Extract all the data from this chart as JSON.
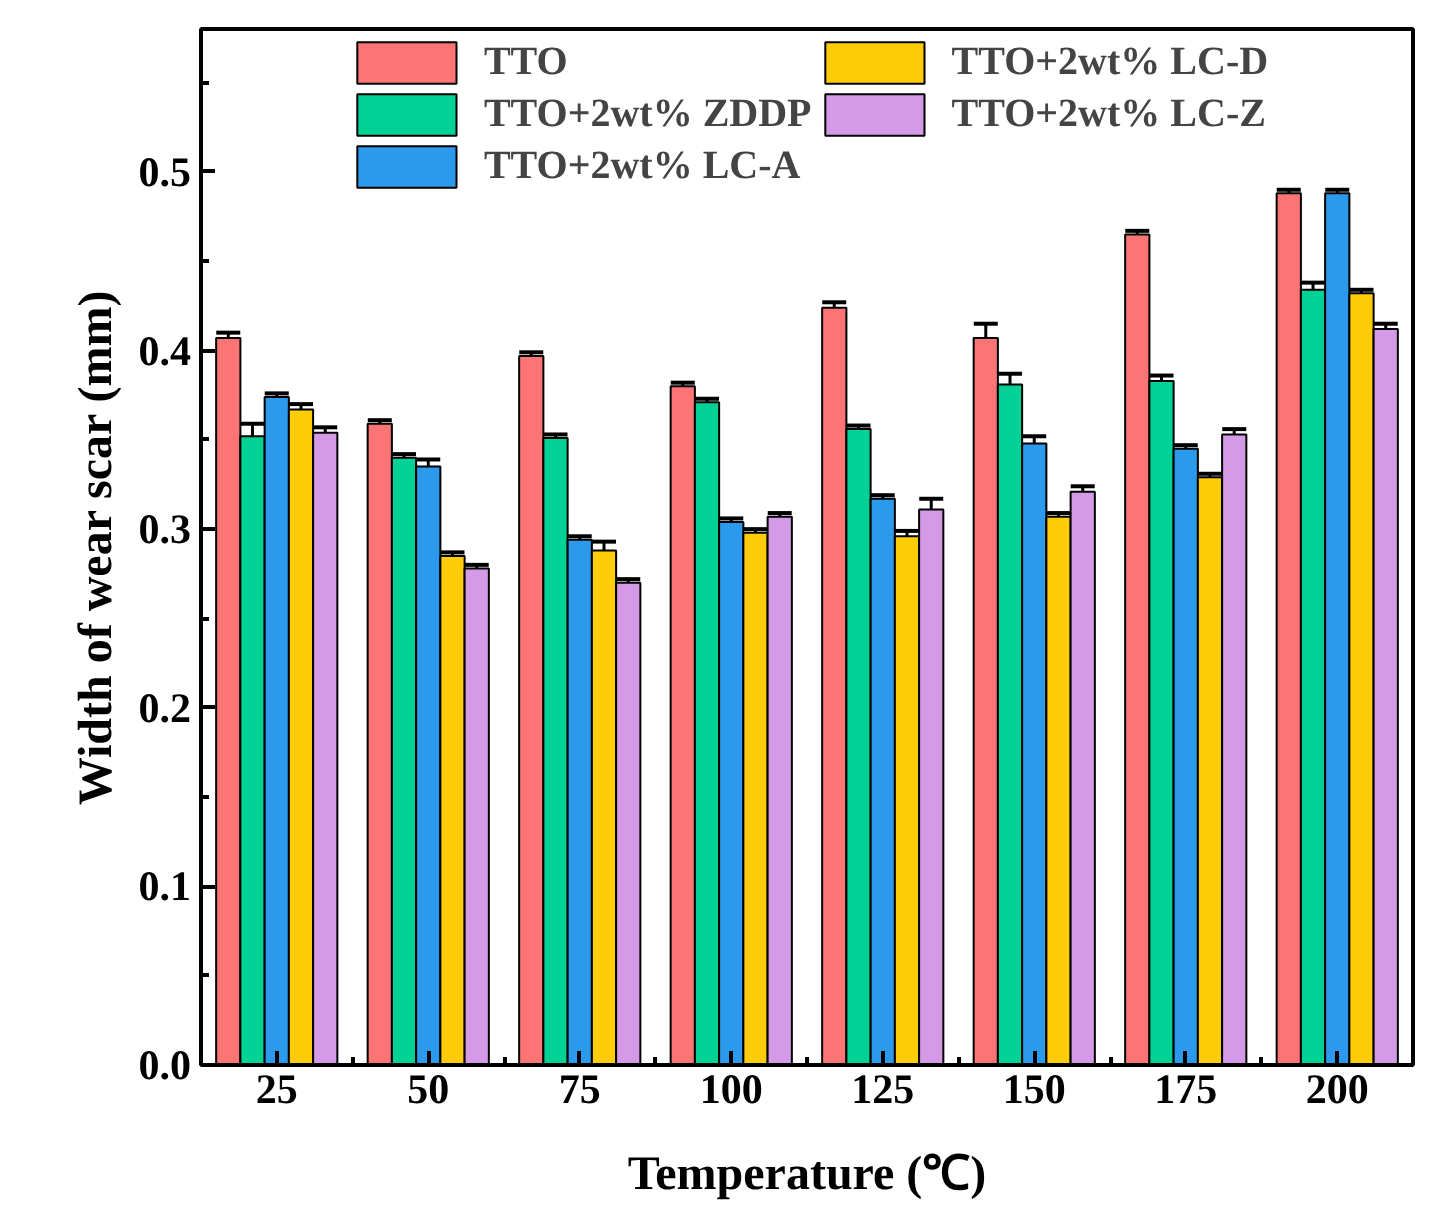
{
  "chart_data": {
    "type": "bar",
    "xlabel": "Temperature (℃)",
    "ylabel": "Width of wear scar (mm)",
    "categories": [
      "25",
      "50",
      "75",
      "100",
      "125",
      "150",
      "175",
      "200"
    ],
    "series": [
      {
        "name": "TTO",
        "color": "#fc7474",
        "values": [
          0.407,
          0.359,
          0.397,
          0.38,
          0.424,
          0.407,
          0.465,
          0.488
        ],
        "errors": [
          0.003,
          0.002,
          0.002,
          0.002,
          0.003,
          0.008,
          0.002,
          0.002
        ]
      },
      {
        "name": "TTO+2wt% ZDDP",
        "color": "#00d296",
        "values": [
          0.352,
          0.34,
          0.351,
          0.371,
          0.356,
          0.381,
          0.383,
          0.434
        ],
        "errors": [
          0.007,
          0.002,
          0.002,
          0.002,
          0.002,
          0.006,
          0.003,
          0.004
        ]
      },
      {
        "name": "TTO+2wt% LC-A",
        "color": "#2b9aec",
        "values": [
          0.374,
          0.335,
          0.294,
          0.304,
          0.317,
          0.348,
          0.345,
          0.488
        ],
        "errors": [
          0.002,
          0.004,
          0.002,
          0.002,
          0.002,
          0.004,
          0.002,
          0.002
        ]
      },
      {
        "name": "TTO+2wt% LC-D",
        "color": "#ffcc09",
        "values": [
          0.367,
          0.285,
          0.288,
          0.298,
          0.296,
          0.307,
          0.329,
          0.432
        ],
        "errors": [
          0.003,
          0.002,
          0.005,
          0.002,
          0.003,
          0.002,
          0.002,
          0.002
        ]
      },
      {
        "name": "TTO+2wt% LC-Z",
        "color": "#d49ae8",
        "values": [
          0.354,
          0.278,
          0.27,
          0.307,
          0.311,
          0.321,
          0.353,
          0.412
        ],
        "errors": [
          0.003,
          0.002,
          0.002,
          0.002,
          0.006,
          0.003,
          0.003,
          0.003
        ]
      }
    ],
    "ylim": [
      0,
      0.58
    ],
    "yticks": [
      {
        "value": 0,
        "label": "0.0"
      },
      {
        "value": 0.05,
        "label": null
      },
      0.1,
      {
        "value": 0.15,
        "label": null
      },
      0.2,
      {
        "value": 0.25,
        "label": null
      },
      0.3,
      {
        "value": 0.35,
        "label": null
      },
      0.4,
      {
        "value": 0.45,
        "label": null
      },
      0.5,
      {
        "value": 0.55,
        "label": null
      }
    ],
    "grid": false,
    "legend": "top"
  }
}
